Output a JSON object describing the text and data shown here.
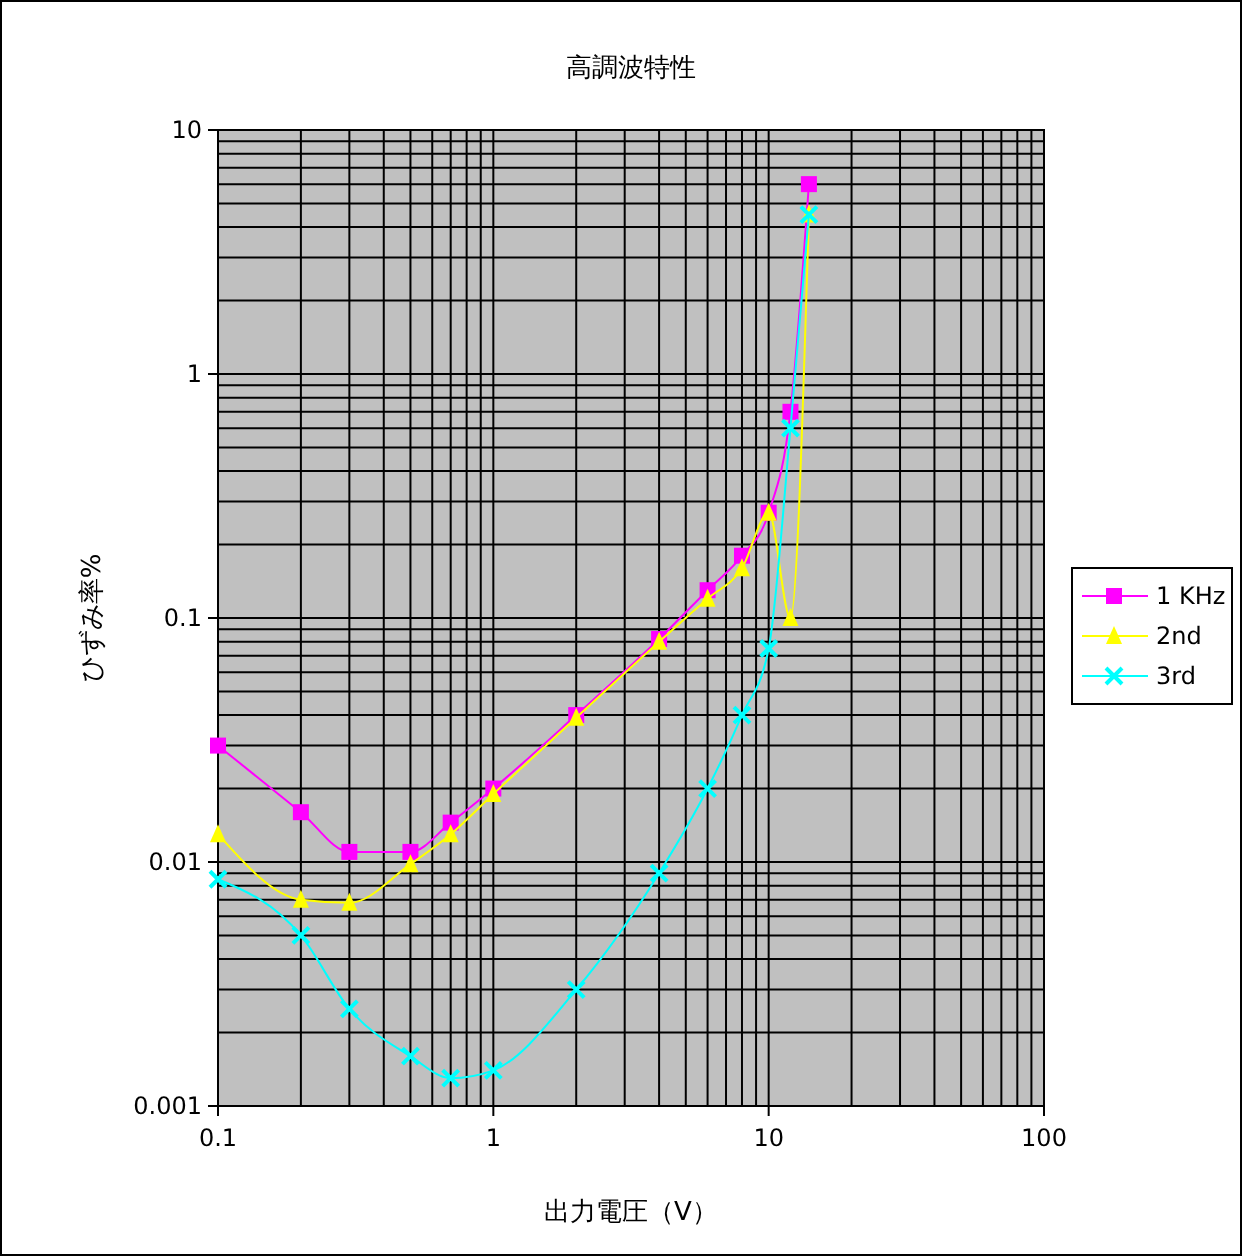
{
  "chart_data": {
    "type": "line",
    "title": "高調波特性",
    "xlabel": "出力電圧（V）",
    "ylabel": "ひずみ率%",
    "log": "xy",
    "grid": true,
    "legend": "right",
    "x": [
      0.1,
      0.2,
      0.3,
      0.5,
      0.7,
      1,
      2,
      4,
      6,
      8,
      10,
      12,
      14
    ],
    "xlim": [
      0.1,
      100
    ],
    "xticks": [
      0.1,
      1,
      10,
      100
    ],
    "ylim": [
      0.001,
      10
    ],
    "yticks": [
      0.001,
      0.01,
      0.1,
      1,
      10
    ],
    "series": [
      {
        "name": "1 KHz",
        "color": "#ff00ff",
        "marker": "square",
        "values": [
          0.03,
          0.016,
          0.011,
          0.011,
          0.0145,
          0.02,
          0.04,
          0.082,
          0.13,
          0.18,
          0.27,
          0.7,
          6
        ]
      },
      {
        "name": "2nd",
        "color": "#ffff00",
        "marker": "triangle",
        "values": [
          0.013,
          0.007,
          0.0068,
          0.0098,
          0.013,
          0.019,
          0.039,
          0.08,
          0.12,
          0.16,
          0.27,
          0.1,
          4.5
        ]
      },
      {
        "name": "3rd",
        "color": "#00ffff",
        "marker": "cross",
        "values": [
          0.0085,
          0.005,
          0.0025,
          0.0016,
          0.0013,
          0.0014,
          0.003,
          0.009,
          0.02,
          0.04,
          0.075,
          0.6,
          4.5
        ]
      }
    ]
  }
}
